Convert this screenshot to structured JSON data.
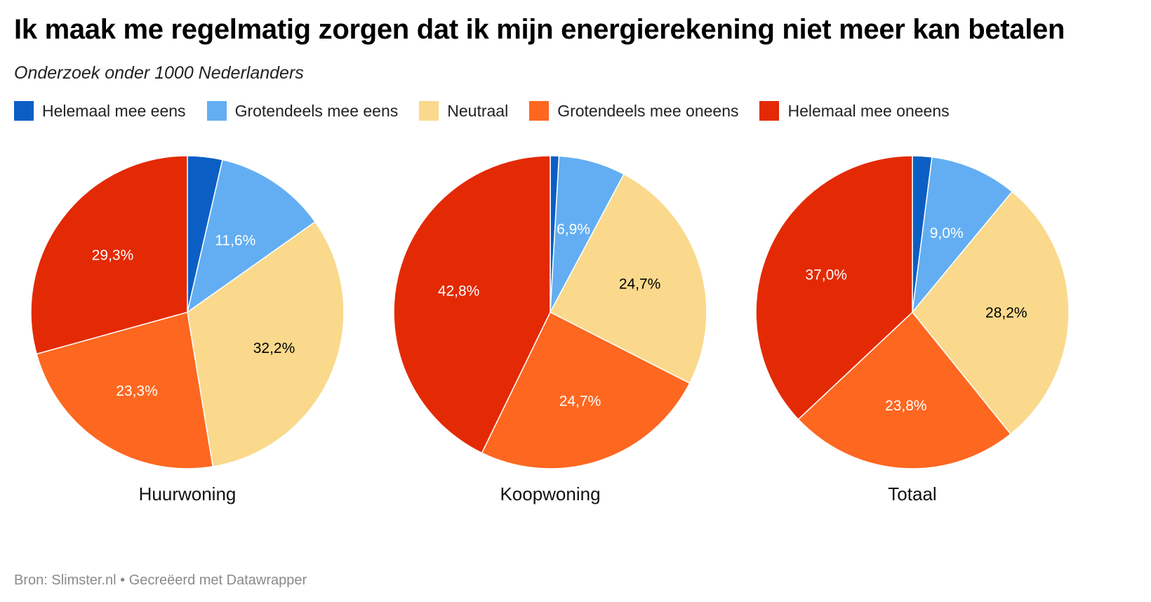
{
  "header": {
    "title": "Ik maak me regelmatig zorgen dat ik mijn energierekening niet meer kan betalen",
    "subtitle": "Onderzoek onder 1000 Nederlanders"
  },
  "legend": [
    {
      "label": "Helemaal mee eens",
      "color": "#0b5fc4"
    },
    {
      "label": "Grotendeels mee eens",
      "color": "#63aef2"
    },
    {
      "label": "Neutraal",
      "color": "#fad98c"
    },
    {
      "label": "Grotendeels mee oneens",
      "color": "#fd6720"
    },
    {
      "label": "Helemaal mee oneens",
      "color": "#e32a05"
    }
  ],
  "chart_data": [
    {
      "type": "pie",
      "title": "Huurwoning",
      "categories": [
        "Helemaal mee eens",
        "Grotendeels mee eens",
        "Neutraal",
        "Grotendeels mee oneens",
        "Helemaal mee oneens"
      ],
      "values": [
        3.6,
        11.6,
        32.2,
        23.3,
        29.3
      ],
      "labels": [
        "",
        "11,6%",
        "32,2%",
        "23,3%",
        "29,3%"
      ]
    },
    {
      "type": "pie",
      "title": "Koopwoning",
      "categories": [
        "Helemaal mee eens",
        "Grotendeels mee eens",
        "Neutraal",
        "Grotendeels mee oneens",
        "Helemaal mee oneens"
      ],
      "values": [
        0.9,
        6.9,
        24.7,
        24.7,
        42.8
      ],
      "labels": [
        "",
        "6,9%",
        "24,7%",
        "24,7%",
        "42,8%"
      ]
    },
    {
      "type": "pie",
      "title": "Totaal",
      "categories": [
        "Helemaal mee eens",
        "Grotendeels mee eens",
        "Neutraal",
        "Grotendeels mee oneens",
        "Helemaal mee oneens"
      ],
      "values": [
        2.0,
        9.0,
        28.2,
        23.8,
        37.0
      ],
      "labels": [
        "",
        "9,0%",
        "28,2%",
        "23,8%",
        "37,0%"
      ]
    }
  ],
  "footer": {
    "source": "Bron: Slimster.nl • Gecreëerd met Datawrapper"
  }
}
